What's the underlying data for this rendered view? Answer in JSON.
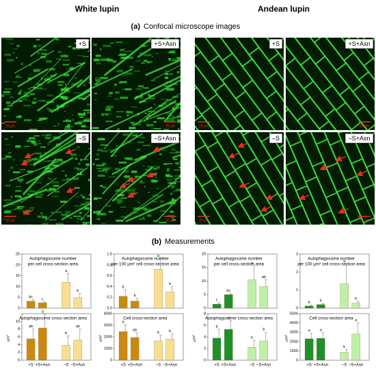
{
  "headers": [
    "White lupin",
    "Andean lupin"
  ],
  "section_a": {
    "tag": "(a)",
    "title": "Confocal microscope images"
  },
  "images": [
    {
      "label": "+S"
    },
    {
      "label": "+S+Asn"
    },
    {
      "label": "+S"
    },
    {
      "label": "+S+Asn"
    },
    {
      "label": "–S"
    },
    {
      "label": "–S+Asn"
    },
    {
      "label": "–S"
    },
    {
      "label": "–S+Asn"
    }
  ],
  "scale_bar": "20 µm",
  "section_b": {
    "tag": "(b)",
    "title": "Measurements"
  },
  "chart_data": [
    {
      "type": "bar",
      "title": [
        "Autophagosome number",
        "per cell cross-section area"
      ],
      "values": [
        3.2,
        2.5,
        12,
        4.8
      ],
      "errors": [
        0.8,
        0.4,
        4,
        2
      ],
      "letters": [
        "bc",
        "c",
        "a",
        "b"
      ],
      "colors": [
        "#c98a12",
        "#c98a12",
        "#f8de8e",
        "#f8de8e"
      ],
      "ylim": [
        0,
        25
      ],
      "yticks": [
        0,
        5,
        10,
        15,
        20,
        25
      ]
    },
    {
      "type": "bar",
      "title": [
        "Autophagosome number",
        "per 100 µm² cell cross-section area"
      ],
      "values": [
        0.22,
        0.13,
        0.72,
        0.3
      ],
      "errors": [
        0.12,
        0.05,
        0.2,
        0.1
      ],
      "letters": [
        "b",
        "b",
        "a",
        "b"
      ],
      "colors": [
        "#c98a12",
        "#c98a12",
        "#f8de8e",
        "#f8de8e"
      ],
      "ylim": [
        0,
        1
      ],
      "yticks": [
        {
          "value": 0,
          "label": "0.0"
        },
        0.2,
        0.4,
        0.6,
        0.8,
        {
          "value": 1,
          "label": "1.0"
        }
      ]
    },
    {
      "type": "bar",
      "title": [
        "Autophagosome number",
        "per cell cross-section area"
      ],
      "values": [
        1.5,
        5,
        10.5,
        8
      ],
      "errors": [
        0.5,
        0.4,
        5,
        2.5
      ],
      "letters": [
        "c",
        "bc",
        "a",
        "ab"
      ],
      "colors": [
        "#1f8f2a",
        "#1f8f2a",
        "#bff0a8",
        "#bff0a8"
      ],
      "ylim": [
        0,
        20
      ],
      "yticks": [
        0,
        5,
        10,
        15,
        20
      ]
    },
    {
      "type": "bar",
      "title": [
        "Autophagosome number",
        "per 100 µm² cell cross-section area"
      ],
      "values": [
        0.12,
        0.2,
        1.35,
        0.28
      ],
      "errors": [
        0.05,
        0.06,
        1.1,
        0.1
      ],
      "letters": [
        "b",
        "b",
        "a",
        "b"
      ],
      "colors": [
        "#1f8f2a",
        "#1f8f2a",
        "#bff0a8",
        "#bff0a8"
      ],
      "ylim": [
        0,
        3
      ],
      "yticks": [
        0,
        1,
        2,
        3
      ]
    },
    {
      "type": "bar",
      "title": [
        "Autophagosome cross-section area"
      ],
      "ylabel": "µm²",
      "categories": [
        "+S",
        "+S+Asn",
        "–S",
        "–S+Asn"
      ],
      "values": [
        5.5,
        8.3,
        3.8,
        5.2
      ],
      "errors": [
        2.5,
        3.5,
        2.5,
        2.8
      ],
      "letters": [
        "ab",
        "a",
        "b",
        "ab"
      ],
      "colors": [
        "#c98a12",
        "#c98a12",
        "#f8de8e",
        "#f8de8e"
      ],
      "ylim": [
        0,
        12
      ],
      "yticks": [
        0,
        2,
        4,
        6,
        8,
        10
      ]
    },
    {
      "type": "bar",
      "title": [
        "Cell cross-section area"
      ],
      "ylabel": "µm²",
      "categories": [
        "+S",
        "+S+Asn",
        "–S",
        "–S+Asn"
      ],
      "values": [
        2450,
        1950,
        1650,
        1800
      ],
      "errors": [
        600,
        400,
        500,
        450
      ],
      "letters": [
        "a",
        "ab",
        "b",
        "b"
      ],
      "colors": [
        "#c98a12",
        "#c98a12",
        "#f8de8e",
        "#f8de8e"
      ],
      "ylim": [
        0,
        4000
      ],
      "yticks": [
        0,
        1000,
        2000,
        3000,
        4000
      ]
    },
    {
      "type": "bar",
      "title": [
        "Autophagosome cross-section area"
      ],
      "ylabel": "µm²",
      "categories": [
        "+S",
        "+S+Asn",
        "–S",
        "–S+Asn"
      ],
      "values": [
        3.8,
        5.3,
        2.2,
        3.3
      ],
      "errors": [
        1.5,
        1.5,
        1.2,
        1.5
      ],
      "letters": [
        "b",
        "a",
        "b",
        "b"
      ],
      "colors": [
        "#1f8f2a",
        "#1f8f2a",
        "#bff0a8",
        "#bff0a8"
      ],
      "ylim": [
        0,
        8
      ],
      "yticks": [
        0,
        2,
        4,
        6,
        8
      ]
    },
    {
      "type": "bar",
      "title": [
        "Cell cross-section area"
      ],
      "ylabel": "µm²",
      "categories": [
        "+S",
        "+S+Asn",
        "–S",
        "–S+Asn"
      ],
      "values": [
        2300,
        2350,
        850,
        2800
      ],
      "errors": [
        600,
        600,
        300,
        1200
      ],
      "letters": [
        "a",
        "a",
        "b",
        "a"
      ],
      "colors": [
        "#1f8f2a",
        "#1f8f2a",
        "#bff0a8",
        "#bff0a8"
      ],
      "ylim": [
        0,
        5000
      ],
      "yticks": [
        0,
        1000,
        2000,
        3000,
        4000,
        5000
      ]
    }
  ]
}
